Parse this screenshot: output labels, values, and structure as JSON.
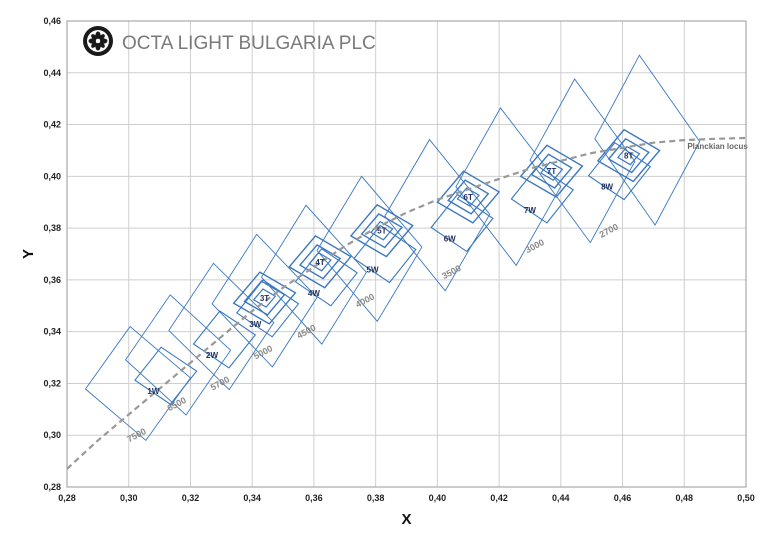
{
  "brand": {
    "name": "OCTA LIGHT  BULGARIA PLC",
    "logo_icon": "octa-logo-icon"
  },
  "chart_data": {
    "type": "scatter",
    "title": "",
    "xlabel": "X",
    "ylabel": "Y",
    "xlim": [
      0.28,
      0.5
    ],
    "ylim": [
      0.28,
      0.46
    ],
    "x_ticks": [
      "0,28",
      "0,30",
      "0,32",
      "0,34",
      "0,36",
      "0,38",
      "0,40",
      "0,42",
      "0,44",
      "0,46",
      "0,48",
      "0,50"
    ],
    "y_ticks": [
      "0,28",
      "0,30",
      "0,32",
      "0,34",
      "0,36",
      "0,38",
      "0,40",
      "0,42",
      "0,44",
      "0,46"
    ],
    "grid": true,
    "colors": {
      "bins": "#3a78c2",
      "locus": "#999999",
      "cct_label": "#888888",
      "bin_label": "#1f2f5a"
    },
    "planckian_locus": {
      "label": "Planckian locus",
      "points": [
        [
          0.28,
          0.287
        ],
        [
          0.29,
          0.298
        ],
        [
          0.3,
          0.308
        ],
        [
          0.31,
          0.318
        ],
        [
          0.32,
          0.328
        ],
        [
          0.33,
          0.338
        ],
        [
          0.34,
          0.348
        ],
        [
          0.35,
          0.357
        ],
        [
          0.36,
          0.365
        ],
        [
          0.37,
          0.373
        ],
        [
          0.38,
          0.38
        ],
        [
          0.39,
          0.386
        ],
        [
          0.4,
          0.391
        ],
        [
          0.41,
          0.395
        ],
        [
          0.42,
          0.399
        ],
        [
          0.43,
          0.403
        ],
        [
          0.44,
          0.406
        ],
        [
          0.45,
          0.409
        ],
        [
          0.46,
          0.411
        ],
        [
          0.47,
          0.413
        ],
        [
          0.48,
          0.414
        ],
        [
          0.49,
          0.4145
        ],
        [
          0.5,
          0.4148
        ]
      ]
    },
    "cct_labels": [
      {
        "text": "7500",
        "x": 0.303,
        "y": 0.299
      },
      {
        "text": "6500",
        "x": 0.316,
        "y": 0.311
      },
      {
        "text": "5700",
        "x": 0.33,
        "y": 0.319
      },
      {
        "text": "5000",
        "x": 0.344,
        "y": 0.331
      },
      {
        "text": "4500",
        "x": 0.358,
        "y": 0.339
      },
      {
        "text": "4000",
        "x": 0.377,
        "y": 0.351
      },
      {
        "text": "3500",
        "x": 0.405,
        "y": 0.362
      },
      {
        "text": "3000",
        "x": 0.432,
        "y": 0.372
      },
      {
        "text": "2700",
        "x": 0.456,
        "y": 0.378
      }
    ],
    "bins": [
      {
        "label": "1W",
        "x": 0.308,
        "y": 0.317
      },
      {
        "label": "2W",
        "x": 0.327,
        "y": 0.331
      },
      {
        "label": "3W",
        "x": 0.341,
        "y": 0.343
      },
      {
        "label": "4W",
        "x": 0.36,
        "y": 0.355
      },
      {
        "label": "5W",
        "x": 0.379,
        "y": 0.364
      },
      {
        "label": "6W",
        "x": 0.404,
        "y": 0.376
      },
      {
        "label": "7W",
        "x": 0.43,
        "y": 0.387
      },
      {
        "label": "8W",
        "x": 0.455,
        "y": 0.396
      },
      {
        "label": "3T",
        "x": 0.344,
        "y": 0.353
      },
      {
        "label": "4T",
        "x": 0.362,
        "y": 0.367
      },
      {
        "label": "5T",
        "x": 0.382,
        "y": 0.379
      },
      {
        "label": "6T",
        "x": 0.41,
        "y": 0.392
      },
      {
        "label": "7T",
        "x": 0.437,
        "y": 0.402
      },
      {
        "label": "8T",
        "x": 0.462,
        "y": 0.408
      }
    ]
  }
}
